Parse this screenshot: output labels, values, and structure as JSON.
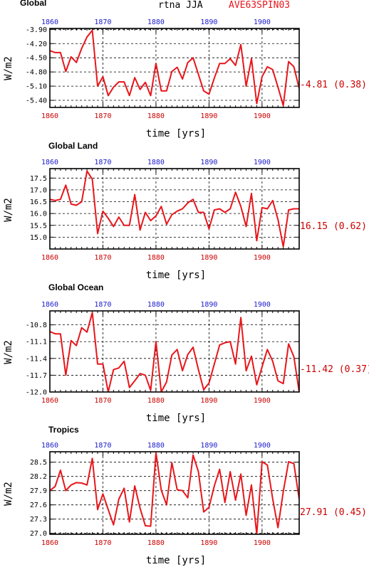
{
  "header": {
    "center": "rtna JJA",
    "right": "AVE63SPIN03"
  },
  "colors": {
    "series": "#e8161b",
    "mean_label": "#cc0000",
    "bottom_ticks": "#cc0000",
    "top_ticks": "#1a1acc",
    "axes": "#000000"
  },
  "chart_data": [
    {
      "type": "line",
      "title": "Global",
      "xlabel": "time [yrs]",
      "ylabel": "W/m2",
      "xlim": [
        1860,
        1907
      ],
      "ylim": [
        -5.55,
        -3.88
      ],
      "xticks": [
        "1860",
        "1870",
        "1880",
        "1890",
        "1900"
      ],
      "yticks": [
        "-3.90",
        "-4.20",
        "-4.50",
        "-4.80",
        "-5.10",
        "-5.40"
      ],
      "grid": true,
      "mean_label": "-4.81 (0.38)",
      "x": [
        1860,
        1861,
        1862,
        1863,
        1864,
        1865,
        1866,
        1867,
        1868,
        1869,
        1870,
        1871,
        1872,
        1873,
        1874,
        1875,
        1876,
        1877,
        1878,
        1879,
        1880,
        1881,
        1882,
        1883,
        1884,
        1885,
        1886,
        1887,
        1888,
        1889,
        1890,
        1891,
        1892,
        1893,
        1894,
        1895,
        1896,
        1897,
        1898,
        1899,
        1900,
        1901,
        1902,
        1903,
        1904,
        1905,
        1906,
        1907
      ],
      "values": [
        -4.35,
        -4.39,
        -4.39,
        -4.79,
        -4.48,
        -4.6,
        -4.3,
        -4.06,
        -3.92,
        -5.1,
        -4.9,
        -5.3,
        -5.12,
        -5.01,
        -5.01,
        -5.3,
        -4.92,
        -5.17,
        -5.02,
        -5.3,
        -4.62,
        -5.2,
        -5.2,
        -4.79,
        -4.7,
        -4.95,
        -4.6,
        -4.5,
        -4.85,
        -5.2,
        -5.27,
        -4.93,
        -4.62,
        -4.62,
        -4.52,
        -4.66,
        -4.22,
        -5.1,
        -4.52,
        -5.47,
        -4.9,
        -4.69,
        -4.75,
        -5.12,
        -5.51,
        -4.58,
        -4.69,
        -5.15
      ]
    },
    {
      "type": "line",
      "title": "Global Land",
      "xlabel": "time [yrs]",
      "ylabel": "W/m2",
      "xlim": [
        1860,
        1907
      ],
      "ylim": [
        14.5,
        17.9
      ],
      "xticks": [
        "1860",
        "1870",
        "1880",
        "1890",
        "1900"
      ],
      "yticks": [
        "17.5",
        "17.0",
        "16.5",
        "16.0",
        "15.5",
        "15.0"
      ],
      "grid": true,
      "mean_label": "16.15 (0.62)",
      "x": [
        1860,
        1861,
        1862,
        1863,
        1864,
        1865,
        1866,
        1867,
        1868,
        1869,
        1870,
        1871,
        1872,
        1873,
        1874,
        1875,
        1876,
        1877,
        1878,
        1879,
        1880,
        1881,
        1882,
        1883,
        1884,
        1885,
        1886,
        1887,
        1888,
        1889,
        1890,
        1891,
        1892,
        1893,
        1894,
        1895,
        1896,
        1897,
        1898,
        1899,
        1900,
        1901,
        1902,
        1903,
        1904,
        1905,
        1906,
        1907
      ],
      "values": [
        16.6,
        16.55,
        16.6,
        17.2,
        16.4,
        16.35,
        16.5,
        17.8,
        17.45,
        15.15,
        16.1,
        15.8,
        15.45,
        15.85,
        15.5,
        15.5,
        16.8,
        15.3,
        16.05,
        15.7,
        15.9,
        16.3,
        15.55,
        15.95,
        16.1,
        16.2,
        16.45,
        16.6,
        16.05,
        16.05,
        15.35,
        16.15,
        16.2,
        16.05,
        16.2,
        16.9,
        16.3,
        15.45,
        16.85,
        14.85,
        16.25,
        16.2,
        16.55,
        15.75,
        14.6,
        16.15,
        16.2,
        16.2
      ]
    },
    {
      "type": "line",
      "title": "Global Ocean",
      "xlabel": "time [yrs]",
      "ylabel": "W/m2",
      "xlim": [
        1860,
        1907
      ],
      "ylim": [
        -12.0,
        -10.55
      ],
      "xticks": [
        "1860",
        "1870",
        "1880",
        "1890",
        "1900"
      ],
      "yticks": [
        "-10.8",
        "-11.1",
        "-11.4",
        "-11.7",
        "-12.0"
      ],
      "grid": true,
      "mean_label": "-11.42 (0.37)",
      "x": [
        1860,
        1861,
        1862,
        1863,
        1864,
        1865,
        1866,
        1867,
        1868,
        1869,
        1870,
        1871,
        1872,
        1873,
        1874,
        1875,
        1876,
        1877,
        1878,
        1879,
        1880,
        1881,
        1882,
        1883,
        1884,
        1885,
        1886,
        1887,
        1888,
        1889,
        1890,
        1891,
        1892,
        1893,
        1894,
        1895,
        1896,
        1897,
        1898,
        1899,
        1900,
        1901,
        1902,
        1903,
        1904,
        1905,
        1906,
        1907
      ],
      "values": [
        -10.92,
        -10.96,
        -10.96,
        -11.7,
        -11.08,
        -11.17,
        -10.85,
        -10.93,
        -10.58,
        -11.5,
        -11.5,
        -12.0,
        -11.6,
        -11.57,
        -11.45,
        -11.92,
        -11.8,
        -11.67,
        -11.7,
        -11.97,
        -11.1,
        -12.0,
        -11.82,
        -11.34,
        -11.24,
        -11.62,
        -11.33,
        -11.2,
        -11.6,
        -11.96,
        -11.84,
        -11.5,
        -11.16,
        -11.12,
        -11.1,
        -11.5,
        -10.67,
        -11.62,
        -11.36,
        -11.87,
        -11.55,
        -11.24,
        -11.45,
        -11.8,
        -11.85,
        -11.14,
        -11.37,
        -12.0
      ]
    },
    {
      "type": "line",
      "title": "Tropics",
      "xlabel": "time [yrs]",
      "ylabel": "W/m2",
      "xlim": [
        1860,
        1907
      ],
      "ylim": [
        26.98,
        28.72
      ],
      "xticks": [
        "1860",
        "1870",
        "1880",
        "1890",
        "1900"
      ],
      "yticks": [
        "28.5",
        "28.2",
        "27.9",
        "27.6",
        "27.3",
        "27.0"
      ],
      "grid": true,
      "mean_label": "27.91 (0.45)",
      "x": [
        1860,
        1861,
        1862,
        1863,
        1864,
        1865,
        1866,
        1867,
        1868,
        1869,
        1870,
        1871,
        1872,
        1873,
        1874,
        1875,
        1876,
        1877,
        1878,
        1879,
        1880,
        1881,
        1882,
        1883,
        1884,
        1885,
        1886,
        1887,
        1888,
        1889,
        1890,
        1891,
        1892,
        1893,
        1894,
        1895,
        1896,
        1897,
        1898,
        1899,
        1900,
        1901,
        1902,
        1903,
        1904,
        1905,
        1906,
        1907
      ],
      "values": [
        27.9,
        27.99,
        28.33,
        27.9,
        28.02,
        28.07,
        28.06,
        28.02,
        28.58,
        27.5,
        27.83,
        27.5,
        27.18,
        27.72,
        27.95,
        27.24,
        28.0,
        27.53,
        27.16,
        27.15,
        28.7,
        27.91,
        27.6,
        28.49,
        27.92,
        27.9,
        27.75,
        28.65,
        28.3,
        27.45,
        27.55,
        28.0,
        28.35,
        27.65,
        28.3,
        27.7,
        28.25,
        27.38,
        28.02,
        26.98,
        28.51,
        28.44,
        27.73,
        27.12,
        27.88,
        28.51,
        28.47,
        27.72
      ]
    }
  ]
}
